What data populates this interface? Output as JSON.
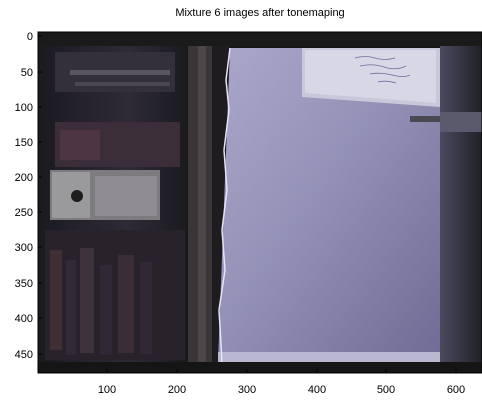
{
  "figure": {
    "title": "Mixture 6 images after tonemaping"
  },
  "axes": {
    "x_ticks": [
      100,
      200,
      300,
      400,
      500,
      600
    ],
    "y_ticks": [
      0,
      50,
      100,
      150,
      200,
      250,
      300,
      350,
      400,
      450
    ],
    "x_range": [
      0,
      640
    ],
    "y_range": [
      0,
      480
    ],
    "y_direction": "top-to-bottom"
  },
  "image_content": {
    "description": "photo",
    "colors": {
      "frame_dark": "#151515",
      "wall": "#8a86b0",
      "wall_light": "#a19fc6",
      "bookshelf": "#2a2530",
      "whiteboard": "#cfcfe0",
      "door_edge": "#3a3738"
    }
  }
}
